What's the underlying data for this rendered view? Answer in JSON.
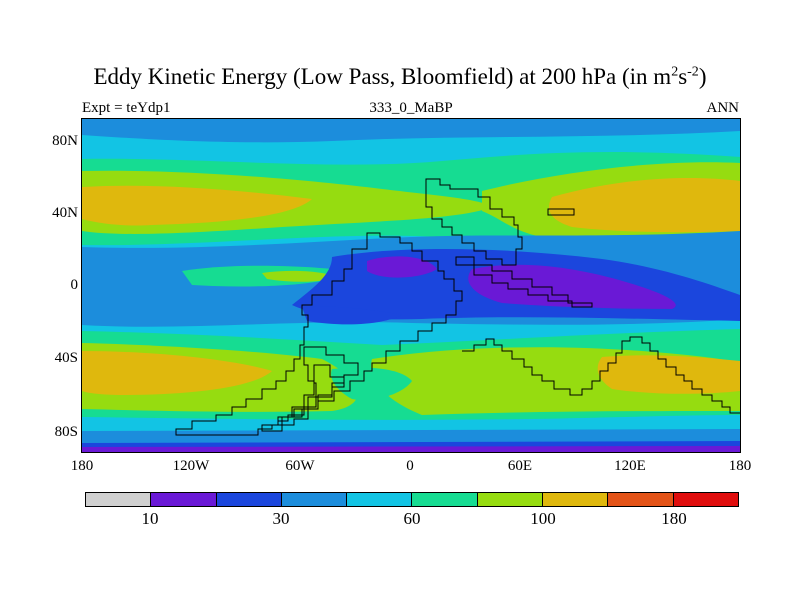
{
  "title": {
    "main": "Eddy Kinetic Energy (Low Pass, Bloomfield) at 200 hPa (in m",
    "sup1": "2",
    "mid": "s",
    "sup2": "-2",
    "end": ")"
  },
  "left_string": "Expt = teYdp1",
  "center_string": "333_0_MaBP",
  "right_string": "ANN",
  "y_ticks": [
    "80N",
    "40N",
    "0",
    "40S",
    "80S"
  ],
  "x_ticks": [
    "180",
    "120W",
    "60W",
    "0",
    "60E",
    "120E",
    "180"
  ],
  "colorbar": {
    "colors": [
      "#d0d0d0",
      "#6a19d6",
      "#1b46dd",
      "#1c8ddc",
      "#12c4e4",
      "#16dc92",
      "#96dc10",
      "#dfb80d",
      "#e35317",
      "#e00d0d"
    ],
    "labels": [
      "10",
      "30",
      "60",
      "100",
      "180"
    ]
  },
  "map": {
    "background_level": "#12c4e4",
    "level_colors": {
      "purple": "#6a19d6",
      "blue": "#1b46dd",
      "mid_blue": "#1c8ddc",
      "cyan": "#12c4e4",
      "green": "#16dc92",
      "lime": "#96dc10",
      "gold": "#dfb80d"
    }
  }
}
